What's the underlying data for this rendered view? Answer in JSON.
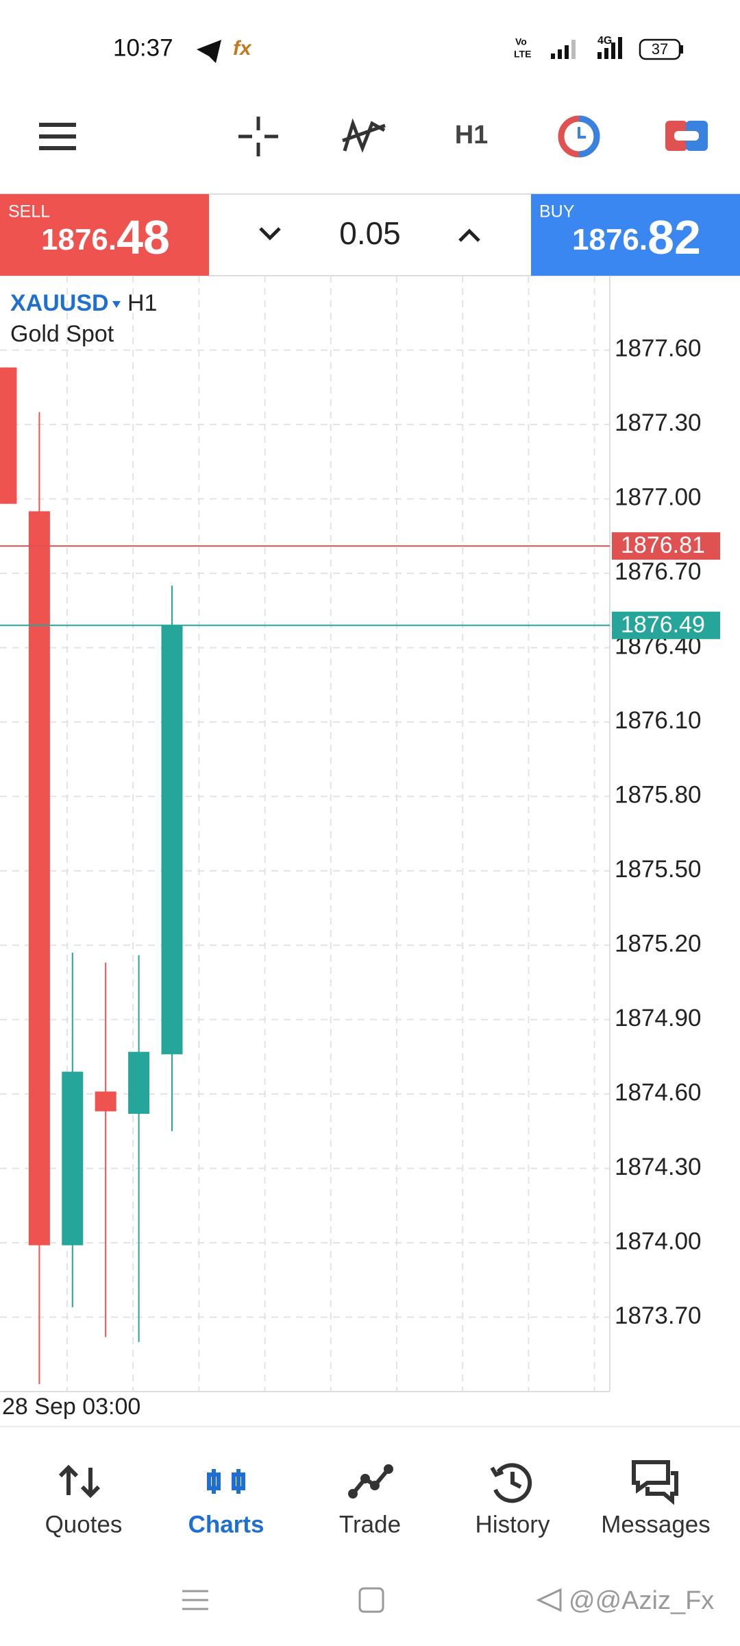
{
  "status_bar": {
    "time": "10:37",
    "volte": [
      "Vo",
      "LTE"
    ],
    "network": "4G",
    "battery": "37"
  },
  "toolbar": {
    "timeframe": "H1"
  },
  "trade_panel": {
    "sell_label": "SELL",
    "sell_price_int": "1876.",
    "sell_price_frac": "48",
    "volume": "0.05",
    "buy_label": "BUY",
    "buy_price_int": "1876.",
    "buy_price_frac": "82"
  },
  "chart_data": {
    "type": "candlestick",
    "symbol": "XAUUSD",
    "timeframe": "H1",
    "description": "Gold Spot",
    "x_label": "28 Sep 03:00",
    "ylim": [
      1873.4,
      1877.9
    ],
    "yticks": [
      {
        "value": 1873.7,
        "label": "1873.70"
      },
      {
        "value": 1874.0,
        "label": "1874.00"
      },
      {
        "value": 1874.3,
        "label": "1874.30"
      },
      {
        "value": 1874.6,
        "label": "1874.60"
      },
      {
        "value": 1874.9,
        "label": "1874.90"
      },
      {
        "value": 1875.2,
        "label": "1875.20"
      },
      {
        "value": 1875.5,
        "label": "1875.50"
      },
      {
        "value": 1875.8,
        "label": "1875.80"
      },
      {
        "value": 1876.1,
        "label": "1876.10"
      },
      {
        "value": 1876.4,
        "label": "1876.40"
      },
      {
        "value": 1876.7,
        "label": "1876.70"
      },
      {
        "value": 1877.0,
        "label": "1877.00"
      },
      {
        "value": 1877.3,
        "label": "1877.30"
      },
      {
        "value": 1877.6,
        "label": "1877.60"
      }
    ],
    "grid": true,
    "up_color": "#26a69a",
    "down_color": "#ef5350",
    "open": [
      1877.53,
      1876.95,
      1873.99,
      1874.61,
      1874.52,
      1874.76
    ],
    "high": [
      1877.53,
      1877.35,
      1875.17,
      1875.13,
      1875.16,
      1876.65
    ],
    "low": [
      1876.98,
      1873.43,
      1873.74,
      1873.62,
      1873.6,
      1874.45
    ],
    "close": [
      1876.98,
      1873.99,
      1874.69,
      1874.53,
      1874.77,
      1876.49
    ],
    "price_lines": [
      {
        "value": 1876.81,
        "color": "#e05252"
      },
      {
        "value": 1876.49,
        "color": "#26a69a"
      }
    ]
  },
  "nav": {
    "items": [
      "Quotes",
      "Charts",
      "Trade",
      "History",
      "Messages"
    ],
    "active": 1
  },
  "watermark": "@@Aziz_Fx"
}
